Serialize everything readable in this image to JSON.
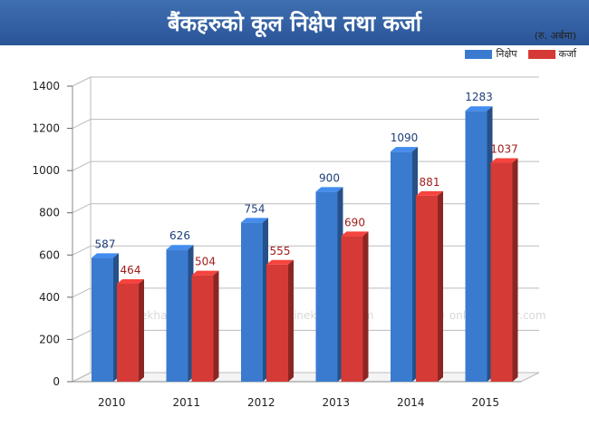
{
  "header": {
    "title": "बैंकहरुको कूल निक्षेप तथा कर्जा",
    "unit_note": "(रु. अर्बमा)"
  },
  "watermark": "© onlinekhabar.com",
  "colors": {
    "title_bar": "#2e5a9e",
    "deposit": "#3a7bd0",
    "loan": "#d63a36"
  },
  "chart_data": {
    "type": "bar",
    "categories": [
      "2010",
      "2011",
      "2012",
      "2013",
      "2014",
      "2015"
    ],
    "series": [
      {
        "name": "निक्षेप",
        "values": [
          587,
          626,
          754,
          900,
          1090,
          1283
        ]
      },
      {
        "name": "कर्जा",
        "values": [
          464,
          504,
          555,
          690,
          881,
          1037
        ]
      }
    ],
    "y_ticks": [
      "0",
      "200",
      "400",
      "600",
      "800",
      "1000",
      "1200",
      "1400"
    ],
    "ylim": [
      0,
      1400
    ],
    "grid": true,
    "legend_position": "top-right",
    "title": "बैंकहरुको कूल निक्षेप तथा कर्जा",
    "xlabel": "",
    "ylabel": ""
  }
}
